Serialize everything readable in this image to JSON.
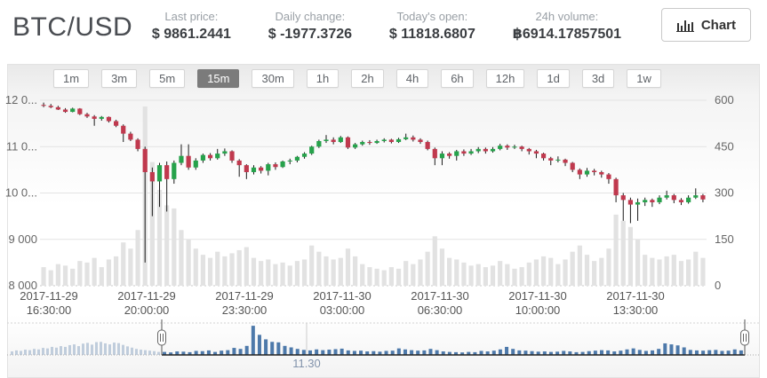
{
  "header": {
    "pair": "BTC/USD",
    "stats": [
      {
        "label": "Last price:",
        "value": "$ 9861.2441"
      },
      {
        "label": "Daily change:",
        "value": "$ -1977.3726"
      },
      {
        "label": "Today's open:",
        "value": "$ 11818.6807"
      },
      {
        "label": "24h volume:",
        "value": "฿6914.17857501"
      }
    ],
    "chart_button_label": "Chart"
  },
  "toolbar": {
    "intervals": [
      "1m",
      "3m",
      "5m",
      "15m",
      "30m",
      "1h",
      "2h",
      "4h",
      "6h",
      "12h",
      "1d",
      "3d",
      "1w"
    ],
    "selected": "15m"
  },
  "chart_data": {
    "type": "candlestick+volume",
    "title": "BTC/USD 15m",
    "price_axis": {
      "labels": [
        "12 0...",
        "11 0...",
        "10 0...",
        "9 000",
        "8 000"
      ],
      "values": [
        12000,
        11000,
        10000,
        9000,
        8000
      ],
      "ylim": [
        8000,
        12000
      ]
    },
    "volume_axis": {
      "labels": [
        "600",
        "450",
        "300",
        "150",
        "0"
      ],
      "values": [
        600,
        450,
        300,
        150,
        0
      ],
      "ylim": [
        0,
        600
      ]
    },
    "x_ticks": [
      [
        "2017-11-29",
        "16:30:00"
      ],
      [
        "2017-11-29",
        "20:00:00"
      ],
      [
        "2017-11-29",
        "23:30:00"
      ],
      [
        "2017-11-30",
        "03:00:00"
      ],
      [
        "2017-11-30",
        "06:30:00"
      ],
      [
        "2017-11-30",
        "10:00:00"
      ],
      [
        "2017-11-30",
        "13:30:00"
      ]
    ],
    "colors": {
      "up": "#26a24b",
      "down": "#c0394e",
      "wick": "#1a1a1a",
      "volume_bar": "#e2e2e2",
      "grid": "#e3e3e3",
      "axis_text": "#666666"
    },
    "candles": [
      [
        11900,
        11950,
        11850,
        11880,
        60
      ],
      [
        11880,
        11920,
        11830,
        11850,
        50
      ],
      [
        11850,
        11880,
        11790,
        11800,
        70
      ],
      [
        11800,
        11830,
        11730,
        11750,
        65
      ],
      [
        11750,
        11840,
        11740,
        11820,
        55
      ],
      [
        11820,
        11830,
        11680,
        11700,
        80
      ],
      [
        11700,
        11730,
        11620,
        11650,
        75
      ],
      [
        11650,
        11680,
        11450,
        11600,
        90
      ],
      [
        11600,
        11660,
        11560,
        11640,
        60
      ],
      [
        11640,
        11650,
        11520,
        11550,
        85
      ],
      [
        11550,
        11580,
        11420,
        11450,
        95
      ],
      [
        11450,
        11480,
        11100,
        11280,
        140
      ],
      [
        11280,
        11320,
        11120,
        11150,
        120
      ],
      [
        11150,
        11180,
        10900,
        10950,
        180
      ],
      [
        10950,
        11000,
        8500,
        10450,
        580
      ],
      [
        10450,
        10550,
        9500,
        10250,
        400
      ],
      [
        10250,
        10650,
        9700,
        10600,
        310
      ],
      [
        10600,
        10680,
        9600,
        10300,
        260
      ],
      [
        10300,
        10700,
        10200,
        10650,
        250
      ],
      [
        10650,
        11050,
        10600,
        10800,
        180
      ],
      [
        10800,
        11050,
        10500,
        10550,
        150
      ],
      [
        10550,
        10750,
        10500,
        10700,
        120
      ],
      [
        10700,
        10850,
        10650,
        10820,
        100
      ],
      [
        10820,
        10860,
        10700,
        10750,
        90
      ],
      [
        10750,
        10950,
        10720,
        10850,
        110
      ],
      [
        10850,
        10960,
        10800,
        10900,
        95
      ],
      [
        10900,
        10920,
        10650,
        10700,
        105
      ],
      [
        10700,
        10730,
        10350,
        10600,
        115
      ],
      [
        10600,
        10620,
        10300,
        10450,
        125
      ],
      [
        10450,
        10600,
        10400,
        10550,
        90
      ],
      [
        10550,
        10580,
        10420,
        10480,
        80
      ],
      [
        10480,
        10650,
        10380,
        10620,
        85
      ],
      [
        10620,
        10660,
        10500,
        10560,
        70
      ],
      [
        10560,
        10700,
        10540,
        10680,
        75
      ],
      [
        10680,
        10740,
        10620,
        10700,
        65
      ],
      [
        10700,
        10800,
        10660,
        10780,
        80
      ],
      [
        10780,
        10880,
        10740,
        10850,
        85
      ],
      [
        10850,
        11020,
        10820,
        11000,
        130
      ],
      [
        11000,
        11150,
        10970,
        11120,
        110
      ],
      [
        11120,
        11250,
        11080,
        11150,
        95
      ],
      [
        11150,
        11200,
        11050,
        11100,
        85
      ],
      [
        11100,
        11230,
        11080,
        11200,
        90
      ],
      [
        11200,
        11220,
        10950,
        10980,
        120
      ],
      [
        10980,
        11080,
        10950,
        11050,
        95
      ],
      [
        11050,
        11130,
        11020,
        11100,
        70
      ],
      [
        11100,
        11140,
        11040,
        11080,
        60
      ],
      [
        11080,
        11150,
        11060,
        11120,
        55
      ],
      [
        11120,
        11180,
        11090,
        11150,
        50
      ],
      [
        11150,
        11170,
        11070,
        11100,
        60
      ],
      [
        11100,
        11190,
        11080,
        11160,
        55
      ],
      [
        11160,
        11280,
        11140,
        11200,
        80
      ],
      [
        11200,
        11240,
        11110,
        11150,
        70
      ],
      [
        11150,
        11180,
        11060,
        11100,
        85
      ],
      [
        11100,
        11130,
        10920,
        10950,
        110
      ],
      [
        10950,
        10980,
        10600,
        10750,
        160
      ],
      [
        10750,
        10900,
        10600,
        10850,
        120
      ],
      [
        10850,
        10880,
        10740,
        10800,
        90
      ],
      [
        10800,
        10930,
        10700,
        10900,
        85
      ],
      [
        10900,
        10940,
        10800,
        10850,
        75
      ],
      [
        10850,
        10950,
        10820,
        10900,
        65
      ],
      [
        10900,
        10990,
        10860,
        10950,
        70
      ],
      [
        10950,
        10980,
        10850,
        10900,
        60
      ],
      [
        10900,
        10990,
        10870,
        10950,
        65
      ],
      [
        10950,
        11060,
        10920,
        11020,
        80
      ],
      [
        11020,
        11050,
        10930,
        10980,
        70
      ],
      [
        10980,
        11040,
        10950,
        11000,
        55
      ],
      [
        11000,
        11020,
        10900,
        10950,
        60
      ],
      [
        10950,
        10970,
        10830,
        10900,
        75
      ],
      [
        10900,
        10930,
        10750,
        10850,
        85
      ],
      [
        10850,
        10870,
        10700,
        10750,
        95
      ],
      [
        10750,
        10780,
        10600,
        10700,
        90
      ],
      [
        10700,
        10790,
        10660,
        10720,
        70
      ],
      [
        10720,
        10740,
        10580,
        10650,
        85
      ],
      [
        10650,
        10670,
        10450,
        10500,
        110
      ],
      [
        10500,
        10530,
        10300,
        10400,
        130
      ],
      [
        10400,
        10540,
        10350,
        10480,
        100
      ],
      [
        10480,
        10520,
        10380,
        10450,
        80
      ],
      [
        10450,
        10480,
        10330,
        10400,
        90
      ],
      [
        10400,
        10430,
        10200,
        10300,
        120
      ],
      [
        10300,
        10330,
        9800,
        9950,
        230
      ],
      [
        9950,
        10000,
        9400,
        9850,
        210
      ],
      [
        9850,
        9900,
        9350,
        9750,
        190
      ],
      [
        9750,
        9880,
        9400,
        9800,
        150
      ],
      [
        9800,
        9900,
        9720,
        9850,
        100
      ],
      [
        9850,
        9880,
        9700,
        9800,
        90
      ],
      [
        9800,
        9950,
        9760,
        9900,
        85
      ],
      [
        9900,
        10050,
        9860,
        9950,
        95
      ],
      [
        9950,
        9980,
        9780,
        9850,
        100
      ],
      [
        9850,
        9890,
        9740,
        9800,
        80
      ],
      [
        9800,
        9950,
        9770,
        9900,
        85
      ],
      [
        9900,
        10100,
        9870,
        9950,
        110
      ],
      [
        9950,
        9980,
        9800,
        9861,
        90
      ]
    ]
  },
  "navigator": {
    "tick_label": "11.30",
    "colors": {
      "selected_bar": "#4d79aa",
      "unselected_bar": "#c0cddc",
      "baseline": "#222222",
      "handle_border": "#666666"
    },
    "pre_bars": [
      70,
      90,
      80,
      105,
      95,
      120,
      110,
      140,
      130,
      160,
      145,
      175,
      160,
      195,
      210,
      175,
      225,
      240,
      205,
      255,
      260,
      230,
      210,
      245,
      235,
      200,
      170,
      145,
      120,
      105,
      95,
      85,
      75,
      60
    ]
  }
}
